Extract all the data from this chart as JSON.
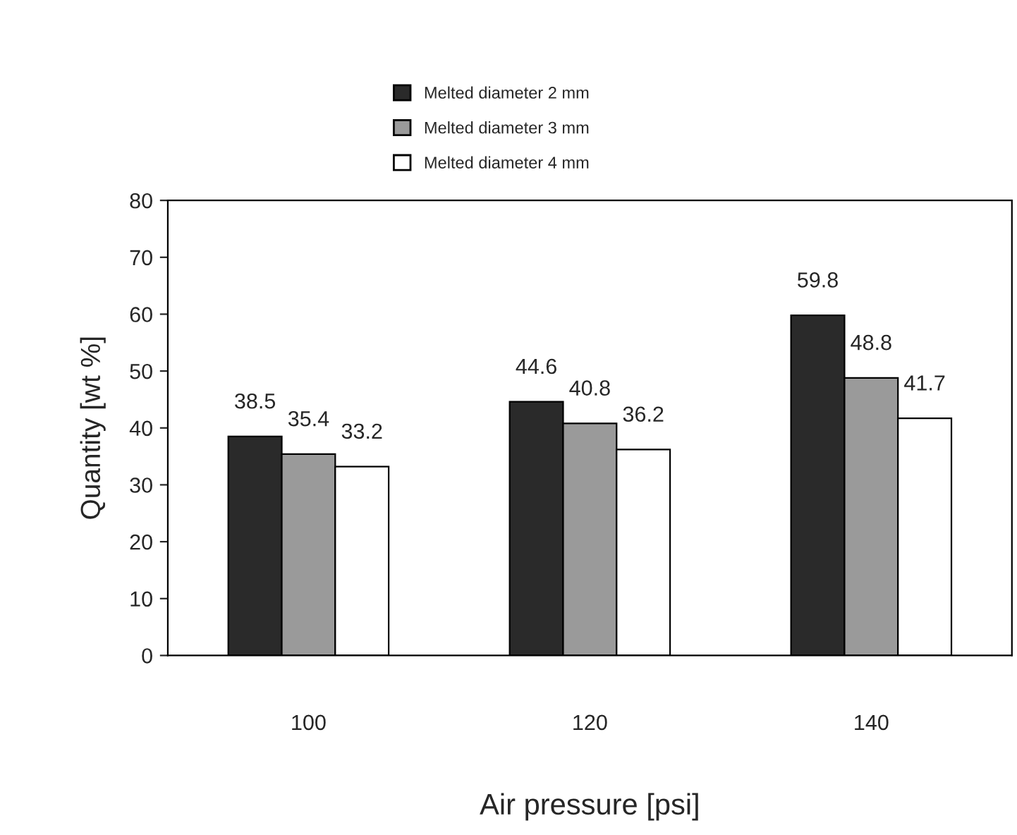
{
  "chart_data": {
    "type": "bar",
    "xlabel": "Air pressure [psi]",
    "ylabel": "Quantity [wt %]",
    "categories": [
      "100",
      "120",
      "140"
    ],
    "series": [
      {
        "name": "Melted diameter 2 mm",
        "color": "#2a2a2a",
        "values": [
          38.5,
          44.6,
          59.8
        ]
      },
      {
        "name": "Melted diameter 3 mm",
        "color": "#9a9a9a",
        "values": [
          35.4,
          40.8,
          48.8
        ]
      },
      {
        "name": "Melted diameter 4 mm",
        "color": "#ffffff",
        "values": [
          33.2,
          36.2,
          41.7
        ]
      }
    ],
    "ylim": [
      0,
      80
    ],
    "yticks": [
      0,
      10,
      20,
      30,
      40,
      50,
      60,
      70,
      80
    ],
    "grid": false,
    "legend": "top",
    "data_labels": true
  }
}
